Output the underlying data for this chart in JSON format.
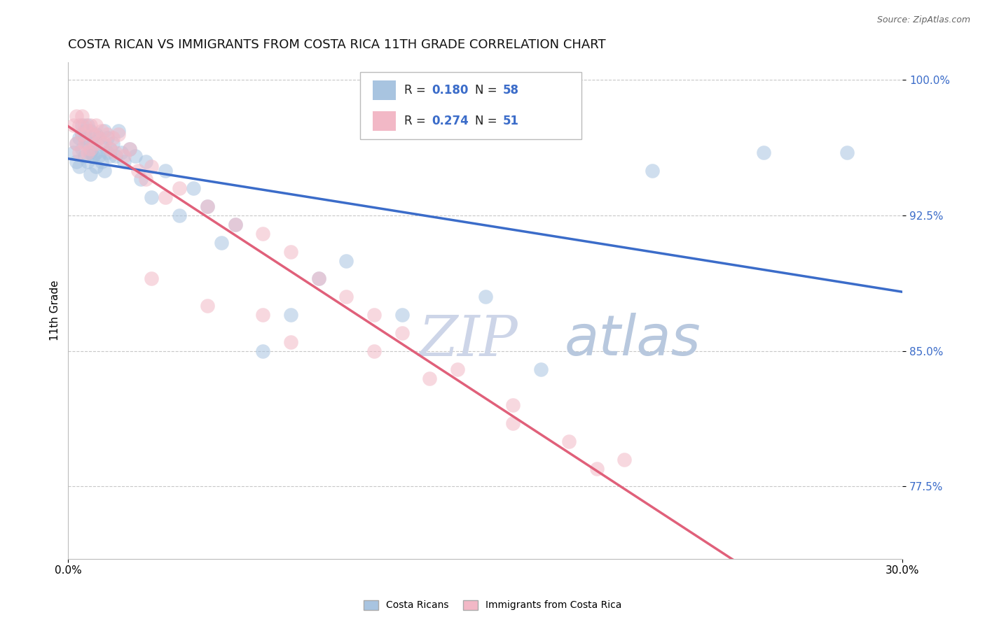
{
  "title": "COSTA RICAN VS IMMIGRANTS FROM COSTA RICA 11TH GRADE CORRELATION CHART",
  "source_text": "Source: ZipAtlas.com",
  "ylabel": "11th Grade",
  "xmin": 0.0,
  "xmax": 0.3,
  "ymin": 0.735,
  "ymax": 1.01,
  "yticks": [
    0.775,
    0.85,
    0.925,
    1.0
  ],
  "ytick_labels": [
    "77.5%",
    "85.0%",
    "92.5%",
    "100.0%"
  ],
  "xticks": [
    0.0,
    0.3
  ],
  "xtick_labels": [
    "0.0%",
    "30.0%"
  ],
  "blue_R": 0.18,
  "blue_N": 58,
  "pink_R": 0.274,
  "pink_N": 51,
  "blue_color": "#a8c4e0",
  "pink_color": "#f2b8c6",
  "blue_line_color": "#3b6cc9",
  "pink_line_color": "#e0607a",
  "legend_blue_label": "Costa Ricans",
  "legend_pink_label": "Immigrants from Costa Rica",
  "blue_scatter_x": [
    0.002,
    0.003,
    0.003,
    0.004,
    0.004,
    0.005,
    0.005,
    0.005,
    0.006,
    0.006,
    0.006,
    0.007,
    0.007,
    0.007,
    0.008,
    0.008,
    0.008,
    0.009,
    0.009,
    0.01,
    0.01,
    0.01,
    0.011,
    0.011,
    0.012,
    0.012,
    0.013,
    0.013,
    0.014,
    0.014,
    0.015,
    0.015,
    0.016,
    0.017,
    0.018,
    0.019,
    0.02,
    0.022,
    0.024,
    0.026,
    0.028,
    0.03,
    0.035,
    0.04,
    0.045,
    0.05,
    0.055,
    0.06,
    0.07,
    0.08,
    0.09,
    0.1,
    0.12,
    0.15,
    0.17,
    0.21,
    0.25,
    0.28
  ],
  "blue_scatter_y": [
    0.96,
    0.965,
    0.955,
    0.968,
    0.952,
    0.97,
    0.962,
    0.975,
    0.968,
    0.958,
    0.972,
    0.965,
    0.955,
    0.975,
    0.96,
    0.972,
    0.948,
    0.965,
    0.958,
    0.97,
    0.96,
    0.952,
    0.968,
    0.958,
    0.965,
    0.955,
    0.972,
    0.95,
    0.96,
    0.968,
    0.958,
    0.962,
    0.965,
    0.958,
    0.972,
    0.96,
    0.955,
    0.962,
    0.958,
    0.945,
    0.955,
    0.935,
    0.95,
    0.925,
    0.94,
    0.93,
    0.91,
    0.92,
    0.85,
    0.87,
    0.89,
    0.9,
    0.87,
    0.88,
    0.84,
    0.95,
    0.96,
    0.96
  ],
  "pink_scatter_x": [
    0.002,
    0.003,
    0.003,
    0.004,
    0.004,
    0.005,
    0.005,
    0.006,
    0.006,
    0.007,
    0.007,
    0.008,
    0.008,
    0.009,
    0.01,
    0.01,
    0.011,
    0.012,
    0.013,
    0.014,
    0.015,
    0.016,
    0.017,
    0.018,
    0.02,
    0.022,
    0.025,
    0.028,
    0.03,
    0.035,
    0.04,
    0.05,
    0.06,
    0.07,
    0.08,
    0.09,
    0.1,
    0.11,
    0.12,
    0.14,
    0.16,
    0.18,
    0.2,
    0.03,
    0.05,
    0.07,
    0.08,
    0.11,
    0.13,
    0.16,
    0.19
  ],
  "pink_scatter_y": [
    0.975,
    0.98,
    0.965,
    0.975,
    0.96,
    0.98,
    0.97,
    0.975,
    0.965,
    0.972,
    0.96,
    0.975,
    0.962,
    0.97,
    0.975,
    0.965,
    0.968,
    0.972,
    0.965,
    0.97,
    0.962,
    0.968,
    0.96,
    0.97,
    0.958,
    0.962,
    0.95,
    0.945,
    0.952,
    0.935,
    0.94,
    0.93,
    0.92,
    0.915,
    0.905,
    0.89,
    0.88,
    0.87,
    0.86,
    0.84,
    0.82,
    0.8,
    0.79,
    0.89,
    0.875,
    0.87,
    0.855,
    0.85,
    0.835,
    0.81,
    0.785
  ],
  "watermark_zip_color": "#d0d8ea",
  "watermark_atlas_color": "#c0cce0",
  "title_fontsize": 13,
  "axis_label_fontsize": 11,
  "tick_fontsize": 11,
  "legend_fontsize": 12
}
